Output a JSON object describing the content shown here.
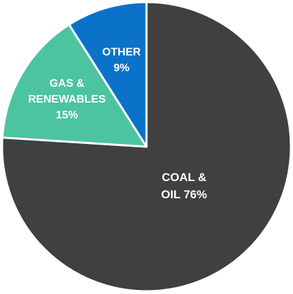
{
  "chart_data": {
    "type": "pie",
    "start_angle_deg": 0,
    "direction": "clockwise",
    "slices": [
      {
        "label_lines": [
          "COAL &",
          "OIL 76%"
        ],
        "value": 76,
        "color": "#404040"
      },
      {
        "label_lines": [
          "GAS &",
          "RENEWABLES",
          "15%"
        ],
        "value": 15,
        "color": "#4dc4a0"
      },
      {
        "label_lines": [
          "OTHER",
          "9%"
        ],
        "value": 9,
        "color": "#0a72c8"
      }
    ]
  }
}
